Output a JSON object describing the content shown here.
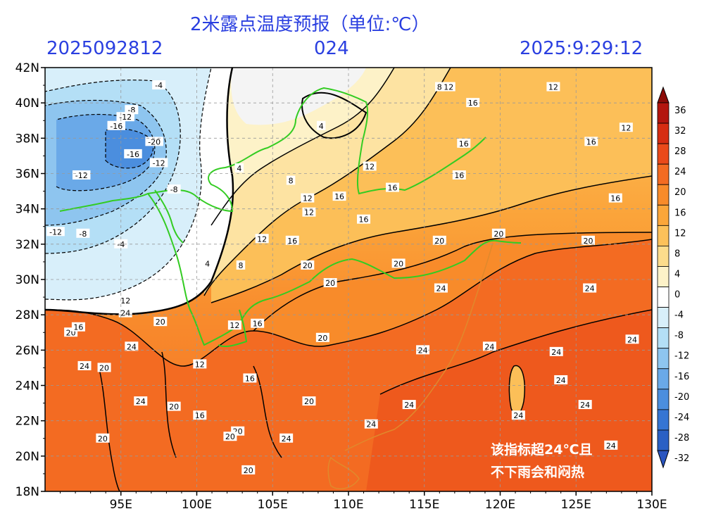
{
  "header": {
    "title": "2米露点温度预报（单位:℃）",
    "run_time": "2025092812",
    "lead_hours": "024",
    "valid_time": "2025:9:29:12"
  },
  "map": {
    "lon_range": [
      90,
      130
    ],
    "lat_range": [
      18,
      42
    ],
    "lon_ticks": [
      "95E",
      "100E",
      "105E",
      "110E",
      "115E",
      "120E",
      "125E",
      "130E"
    ],
    "lat_ticks": [
      "42N",
      "40N",
      "38N",
      "36N",
      "34N",
      "32N",
      "30N",
      "28N",
      "26N",
      "24N",
      "22N",
      "20N",
      "18N"
    ],
    "grid": true
  },
  "colorbar": {
    "levels": [
      "36",
      "32",
      "28",
      "24",
      "20",
      "16",
      "12",
      "8",
      "4",
      "0",
      "-4",
      "-8",
      "-12",
      "-16",
      "-20",
      "-24",
      "-28",
      "-32"
    ],
    "colors": [
      "#b3160f",
      "#d62d12",
      "#ea4a1a",
      "#f36b22",
      "#f88b2a",
      "#fba63a",
      "#fcc15a",
      "#fcdc8c",
      "#fdf2c8",
      "#ffffff",
      "#d8effa",
      "#b4dff6",
      "#8ec5ef",
      "#6aa9e8",
      "#4b8ede",
      "#3575d3",
      "#2a60c4"
    ]
  },
  "contour_labels": [
    {
      "text": "-4",
      "lon": 97.5,
      "lat": 41.0
    },
    {
      "text": "-8",
      "lon": 95.7,
      "lat": 39.6
    },
    {
      "text": "-12",
      "lon": 95.3,
      "lat": 39.2
    },
    {
      "text": "-16",
      "lon": 94.7,
      "lat": 38.7
    },
    {
      "text": "-20",
      "lon": 97.2,
      "lat": 37.8
    },
    {
      "text": "-16",
      "lon": 95.8,
      "lat": 37.1
    },
    {
      "text": "-12",
      "lon": 97.5,
      "lat": 36.6
    },
    {
      "text": "-12",
      "lon": 92.4,
      "lat": 35.9
    },
    {
      "text": "-8",
      "lon": 98.5,
      "lat": 35.1
    },
    {
      "text": "-12",
      "lon": 90.7,
      "lat": 32.7
    },
    {
      "text": "-8",
      "lon": 92.5,
      "lat": 32.6
    },
    {
      "text": "-4",
      "lon": 95.0,
      "lat": 32.0
    },
    {
      "text": "4",
      "lon": 108.2,
      "lat": 38.7
    },
    {
      "text": "4",
      "lon": 102.8,
      "lat": 36.3
    },
    {
      "text": "8",
      "lon": 106.2,
      "lat": 35.6
    },
    {
      "text": "12",
      "lon": 107.3,
      "lat": 34.6
    },
    {
      "text": "16",
      "lon": 109.4,
      "lat": 34.7
    },
    {
      "text": "12",
      "lon": 107.4,
      "lat": 33.8
    },
    {
      "text": "12",
      "lon": 111.4,
      "lat": 36.4
    },
    {
      "text": "16",
      "lon": 112.9,
      "lat": 35.2
    },
    {
      "text": "16",
      "lon": 117.6,
      "lat": 37.7
    },
    {
      "text": "16",
      "lon": 117.3,
      "lat": 35.9
    },
    {
      "text": "16",
      "lon": 118.2,
      "lat": 40.0
    },
    {
      "text": "12",
      "lon": 116.6,
      "lat": 40.9
    },
    {
      "text": "8",
      "lon": 116.0,
      "lat": 40.9
    },
    {
      "text": "12",
      "lon": 123.5,
      "lat": 40.9
    },
    {
      "text": "12",
      "lon": 128.3,
      "lat": 38.6
    },
    {
      "text": "16",
      "lon": 126.0,
      "lat": 37.8
    },
    {
      "text": "16",
      "lon": 127.6,
      "lat": 34.6
    },
    {
      "text": "16",
      "lon": 111.0,
      "lat": 33.4
    },
    {
      "text": "16",
      "lon": 106.3,
      "lat": 32.2
    },
    {
      "text": "12",
      "lon": 104.3,
      "lat": 32.3
    },
    {
      "text": "20",
      "lon": 116.0,
      "lat": 32.2
    },
    {
      "text": "20",
      "lon": 119.9,
      "lat": 32.6
    },
    {
      "text": "20",
      "lon": 125.8,
      "lat": 32.2
    },
    {
      "text": "20",
      "lon": 113.3,
      "lat": 30.9
    },
    {
      "text": "20",
      "lon": 107.3,
      "lat": 30.8
    },
    {
      "text": "20",
      "lon": 108.8,
      "lat": 29.8
    },
    {
      "text": "24",
      "lon": 116.1,
      "lat": 29.5
    },
    {
      "text": "24",
      "lon": 125.9,
      "lat": 29.5
    },
    {
      "text": "4",
      "lon": 100.7,
      "lat": 30.9
    },
    {
      "text": "8",
      "lon": 102.9,
      "lat": 30.8
    },
    {
      "text": "12",
      "lon": 102.5,
      "lat": 27.4
    },
    {
      "text": "16",
      "lon": 104.0,
      "lat": 27.5
    },
    {
      "text": "12",
      "lon": 95.3,
      "lat": 28.8
    },
    {
      "text": "24",
      "lon": 95.3,
      "lat": 28.1
    },
    {
      "text": "20",
      "lon": 97.6,
      "lat": 27.6
    },
    {
      "text": "20",
      "lon": 91.7,
      "lat": 27.0
    },
    {
      "text": "16",
      "lon": 92.2,
      "lat": 27.3
    },
    {
      "text": "20",
      "lon": 108.3,
      "lat": 26.7
    },
    {
      "text": "24",
      "lon": 95.7,
      "lat": 26.2
    },
    {
      "text": "24",
      "lon": 92.6,
      "lat": 25.1
    },
    {
      "text": "20",
      "lon": 93.9,
      "lat": 25.0
    },
    {
      "text": "12",
      "lon": 100.2,
      "lat": 25.2
    },
    {
      "text": "24",
      "lon": 114.9,
      "lat": 26.0
    },
    {
      "text": "24",
      "lon": 119.3,
      "lat": 26.2
    },
    {
      "text": "24",
      "lon": 123.7,
      "lat": 25.9
    },
    {
      "text": "24",
      "lon": 128.7,
      "lat": 26.6
    },
    {
      "text": "16",
      "lon": 103.5,
      "lat": 24.4
    },
    {
      "text": "24",
      "lon": 124.0,
      "lat": 24.3
    },
    {
      "text": "20",
      "lon": 107.4,
      "lat": 23.1
    },
    {
      "text": "24",
      "lon": 96.3,
      "lat": 23.1
    },
    {
      "text": "20",
      "lon": 98.5,
      "lat": 22.8
    },
    {
      "text": "24",
      "lon": 114.0,
      "lat": 22.9
    },
    {
      "text": "24",
      "lon": 125.6,
      "lat": 22.9
    },
    {
      "text": "16",
      "lon": 100.2,
      "lat": 22.3
    },
    {
      "text": "24",
      "lon": 121.2,
      "lat": 22.3
    },
    {
      "text": "24",
      "lon": 111.5,
      "lat": 21.8
    },
    {
      "text": "20",
      "lon": 102.7,
      "lat": 21.4
    },
    {
      "text": "20",
      "lon": 102.2,
      "lat": 21.1
    },
    {
      "text": "20",
      "lon": 93.8,
      "lat": 21.0
    },
    {
      "text": "24",
      "lon": 105.9,
      "lat": 21.0
    },
    {
      "text": "24",
      "lon": 127.3,
      "lat": 20.6
    },
    {
      "text": "20",
      "lon": 103.4,
      "lat": 19.2
    }
  ],
  "note": {
    "line1": "该指标超24℃且",
    "line2": "不下雨会和闷热"
  }
}
